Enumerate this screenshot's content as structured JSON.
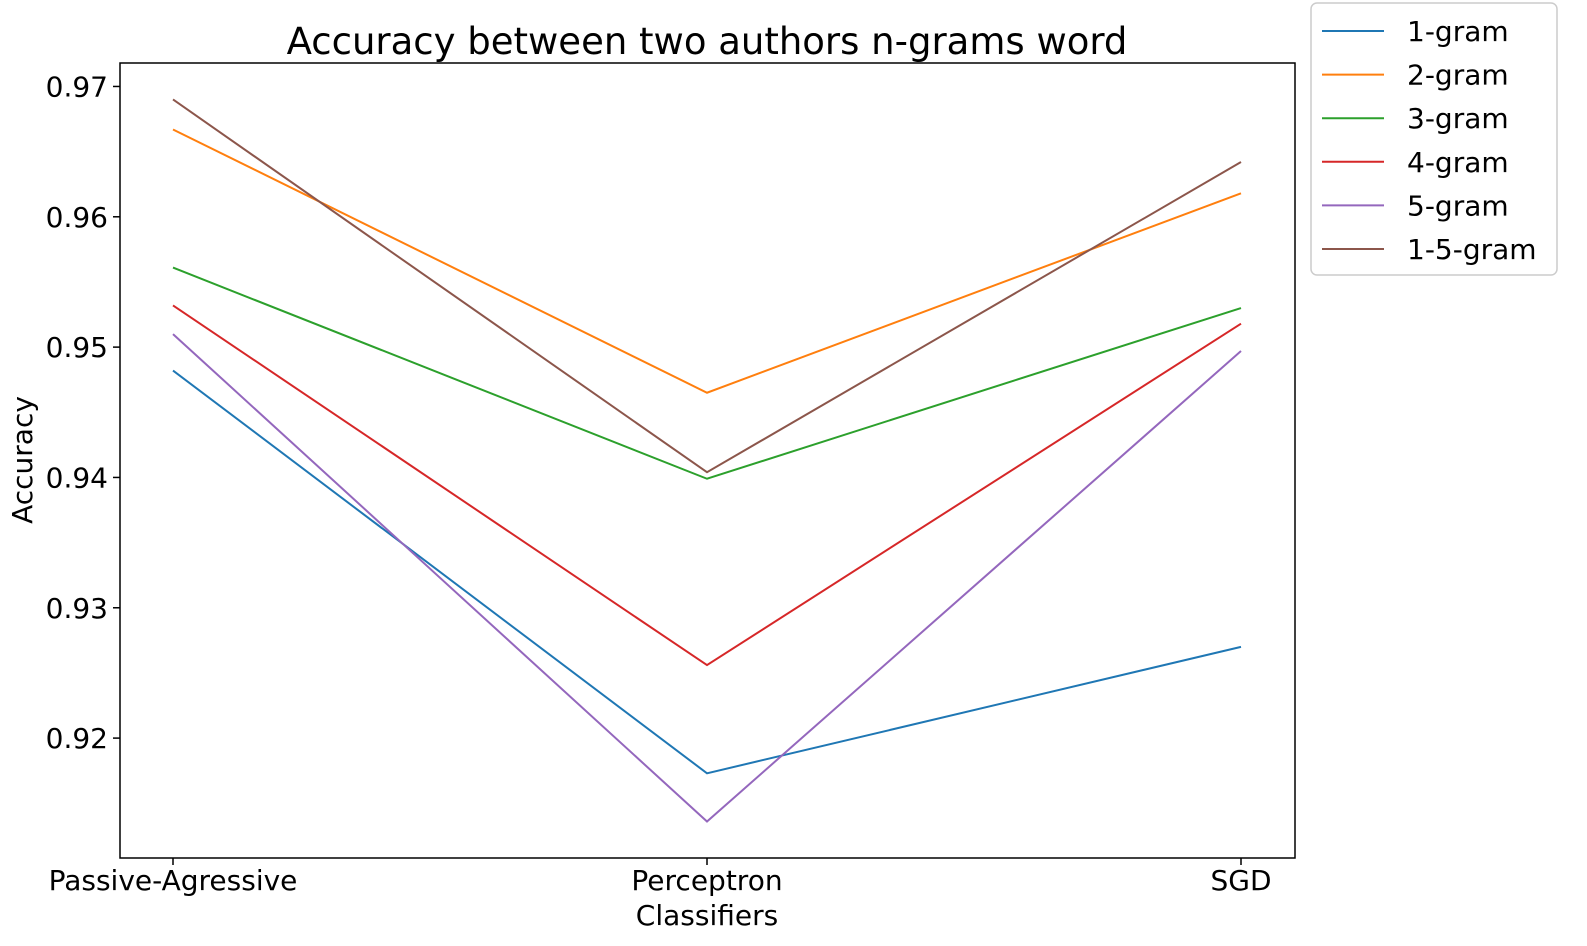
{
  "chart_data": {
    "type": "line",
    "title": "Accuracy between two authors n-grams word",
    "xlabel": "Classifiers",
    "ylabel": "Accuracy",
    "categories": [
      "Passive-Agressive",
      "Perceptron",
      "SGD"
    ],
    "series": [
      {
        "name": "1-gram",
        "color": "#1f77b4",
        "values": [
          0.9482,
          0.9173,
          0.927
        ]
      },
      {
        "name": "2-gram",
        "color": "#ff7f0e",
        "values": [
          0.9667,
          0.9465,
          0.9618
        ]
      },
      {
        "name": "3-gram",
        "color": "#2ca02c",
        "values": [
          0.9561,
          0.9399,
          0.953
        ]
      },
      {
        "name": "4-gram",
        "color": "#d62728",
        "values": [
          0.9532,
          0.9256,
          0.9518
        ]
      },
      {
        "name": "5-gram",
        "color": "#9467bd",
        "values": [
          0.951,
          0.9136,
          0.9497
        ]
      },
      {
        "name": "1-5-gram",
        "color": "#8c564b",
        "values": [
          0.969,
          0.9404,
          0.9642
        ]
      }
    ],
    "yticks": [
      "0.92",
      "0.93",
      "0.94",
      "0.95",
      "0.96",
      "0.97"
    ],
    "ylim": [
      0.9108,
      0.9718
    ],
    "legend_position": "outside-top-right",
    "grid": false
  }
}
